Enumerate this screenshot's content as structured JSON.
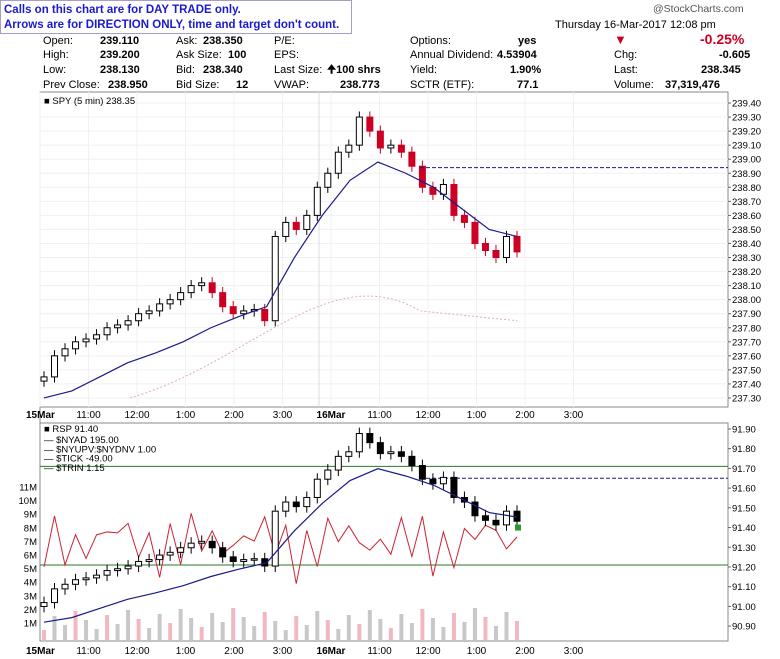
{
  "notice": {
    "line1": "Calls on this chart are for DAY TRADE only.",
    "line2": "Arrows are for DIRECTION ONLY, time and target don't count."
  },
  "header": {
    "brand": "@StockCharts.com",
    "datetime": "Thursday  16-Mar-2017  12:08 pm",
    "change_pct": "-0.25%",
    "open_label": "Open:",
    "open": "239.110",
    "high_label": "High:",
    "high": "239.200",
    "low_label": "Low:",
    "low": "238.130",
    "prev_close_label": "Prev Close:",
    "prev_close": "238.950",
    "ask_label": "Ask:",
    "ask": "238.350",
    "ask_size_label": "Ask Size:",
    "ask_size": "100",
    "bid_label": "Bid:",
    "bid": "238.340",
    "bid_size_label": "Bid Size:",
    "bid_size": "12",
    "pe_label": "P/E:",
    "pe": "",
    "eps_label": "EPS:",
    "eps": "",
    "last_size_label": "Last Size:",
    "last_size": "100 shrs",
    "vwap_label": "VWAP:",
    "vwap": "238.773",
    "options_label": "Options:",
    "options": "yes",
    "dividend_label": "Annual Dividend:",
    "dividend": "4.53904",
    "yield_label": "Yield:",
    "yield": "1.90%",
    "sctr_label": "SCTR (ETF):",
    "sctr": "77.1",
    "chg_label": "Chg:",
    "chg": "-0.605",
    "last_label": "Last:",
    "last": "238.345",
    "volume_label": "Volume:",
    "volume": "37,319,476",
    "colors": {
      "down": "#cc0022",
      "up": "#000000"
    }
  },
  "chart_data": [
    {
      "type": "candlestick",
      "title": "SPY (5 min) 238.35",
      "ylim": [
        237.25,
        239.45
      ],
      "y_ticks": [
        "239.40",
        "239.30",
        "239.20",
        "239.10",
        "239.00",
        "238.90",
        "238.80",
        "238.70",
        "238.60",
        "238.50",
        "238.40",
        "238.30",
        "238.20",
        "238.10",
        "238.00",
        "237.90",
        "237.80",
        "237.70",
        "237.60",
        "237.50",
        "237.40",
        "237.30"
      ],
      "x_ticks": [
        "15Mar",
        "11:00",
        "12:00",
        "1:00",
        "2:00",
        "3:00",
        "16Mar",
        "11:00",
        "12:00",
        "1:00",
        "2:00",
        "3:00"
      ],
      "close_path": [
        237.45,
        237.6,
        237.65,
        237.7,
        237.72,
        237.75,
        237.8,
        237.82,
        237.85,
        237.9,
        237.92,
        237.97,
        238.0,
        238.05,
        238.1,
        238.12,
        238.05,
        237.95,
        237.9,
        237.92,
        237.93,
        237.85,
        238.45,
        238.55,
        238.5,
        238.6,
        238.8,
        238.9,
        239.05,
        239.1,
        239.3,
        239.2,
        239.08,
        239.1,
        239.05,
        238.95,
        238.8,
        238.75,
        238.82,
        238.6,
        238.55,
        238.4,
        238.35,
        238.3,
        238.45,
        238.34
      ],
      "moving_average": [
        237.3,
        237.35,
        237.45,
        237.55,
        237.62,
        237.7,
        237.8,
        237.88,
        237.95,
        238.3,
        238.6,
        238.85,
        238.98,
        238.9,
        238.8,
        238.65,
        238.5,
        238.45
      ],
      "dotted_line": 238.94,
      "annotations": {
        "last_marker": "238.35"
      }
    },
    {
      "type": "line",
      "title": "RSP 91.40",
      "legend": [
        "$NYAD 195.00",
        "$NYUPV:$NYDNV 1.00",
        "$TICK -49.00",
        "$TRIN 1.15"
      ],
      "ylim_right": [
        90.85,
        91.92
      ],
      "y_ticks_right": [
        "91.90",
        "91.80",
        "91.70",
        "91.60",
        "91.50",
        "91.40",
        "91.30",
        "91.20",
        "91.10",
        "91.00",
        "90.90"
      ],
      "y_ticks_left": [
        "11M",
        "10M",
        "9M",
        "8M",
        "7M",
        "6M",
        "5M",
        "4M",
        "3M",
        "2M",
        "1M"
      ],
      "x_ticks": [
        "15Mar",
        "11:00",
        "12:00",
        "1:00",
        "2:00",
        "3:00",
        "16Mar",
        "11:00",
        "12:00",
        "1:00",
        "2:00",
        "3:00"
      ],
      "horizontal_lines": [
        91.71,
        91.21
      ],
      "dotted_line": 91.65
    }
  ]
}
